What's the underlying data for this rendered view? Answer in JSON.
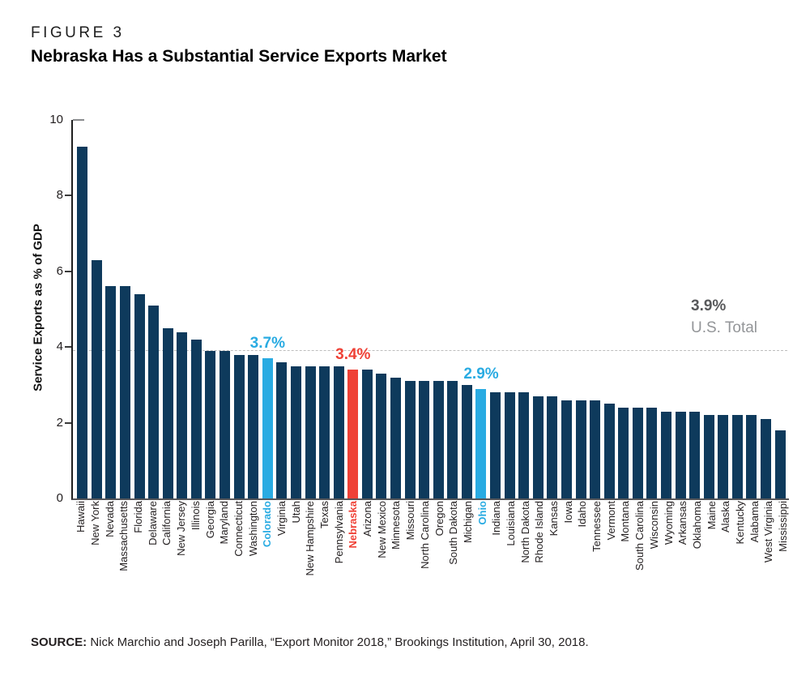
{
  "figure": {
    "label": "FIGURE 3",
    "title": "Nebraska Has a Substantial Service Exports Market"
  },
  "source": {
    "prefix": "SOURCE:",
    "text": " Nick Marchio and Joseph Parilla, “Export Monitor 2018,” Brookings Institution, April 30, 2018."
  },
  "chart_data": {
    "type": "bar",
    "title": "Nebraska Has a Substantial Service Exports Market",
    "xlabel": "",
    "ylabel": "Service Exports as % of GDP",
    "ylim": [
      0,
      10
    ],
    "yticks": [
      0,
      2,
      4,
      6,
      8,
      10
    ],
    "grid": false,
    "legend": "none",
    "reference_line": {
      "value": 3.9,
      "label_value": "3.9%",
      "label_caption": "U.S. Total",
      "style": "dashed"
    },
    "colors": {
      "bar": "#0E3A5C",
      "highlight_blue": "#29ABE2",
      "highlight_red": "#EF4136",
      "reference_line": "#BDBDBD"
    },
    "categories": [
      "Hawaii",
      "New York",
      "Nevada",
      "Massachusetts",
      "Florida",
      "Delaware",
      "California",
      "New Jersey",
      "Illinois",
      "Georgia",
      "Maryland",
      "Connecticut",
      "Washington",
      "Colorado",
      "Virginia",
      "Utah",
      "New Hampshire",
      "Texas",
      "Pennsylvania",
      "Nebraska",
      "Arizona",
      "New Mexico",
      "Minnesota",
      "Missouri",
      "North Carolina",
      "Oregon",
      "South Dakota",
      "Michigan",
      "Ohio",
      "Indiana",
      "Louisiana",
      "North Dakota",
      "Rhode Island",
      "Kansas",
      "Iowa",
      "Idaho",
      "Tennessee",
      "Vermont",
      "Montana",
      "South Carolina",
      "Wisconsin",
      "Wyoming",
      "Arkansas",
      "Oklahoma",
      "Maine",
      "Alaska",
      "Kentucky",
      "Alabama",
      "West Virginia",
      "Mississippi"
    ],
    "values": [
      9.3,
      6.3,
      5.6,
      5.6,
      5.4,
      5.1,
      4.5,
      4.4,
      4.2,
      3.9,
      3.9,
      3.8,
      3.8,
      3.7,
      3.6,
      3.5,
      3.5,
      3.5,
      3.5,
      3.4,
      3.4,
      3.3,
      3.2,
      3.1,
      3.1,
      3.1,
      3.1,
      3.0,
      2.9,
      2.8,
      2.8,
      2.8,
      2.7,
      2.7,
      2.6,
      2.6,
      2.6,
      2.5,
      2.4,
      2.4,
      2.4,
      2.3,
      2.3,
      2.3,
      2.2,
      2.2,
      2.2,
      2.2,
      2.1,
      1.8
    ],
    "highlights": {
      "Colorado": "blue",
      "Nebraska": "red",
      "Ohio": "blue"
    },
    "annotations": [
      {
        "state": "Colorado",
        "text": "3.7%",
        "color": "#29ABE2"
      },
      {
        "state": "Nebraska",
        "text": "3.4%",
        "color": "#EF4136"
      },
      {
        "state": "Ohio",
        "text": "2.9%",
        "color": "#29ABE2"
      }
    ]
  }
}
